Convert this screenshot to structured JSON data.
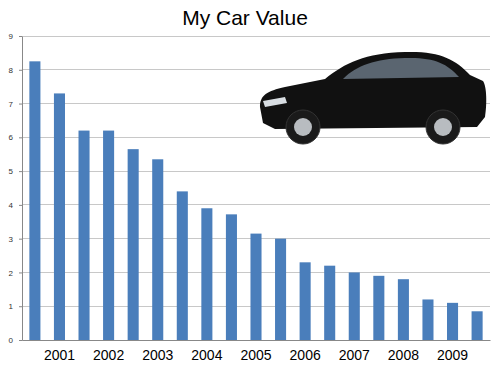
{
  "chart_data": {
    "type": "bar",
    "title": "My Car Value",
    "categories": [
      null,
      "2001",
      null,
      "2002",
      null,
      "2003",
      null,
      "2004",
      null,
      "2005",
      null,
      "2006",
      null,
      "2007",
      null,
      "2008",
      null,
      "2009",
      null
    ],
    "values": [
      8.25,
      7.3,
      6.2,
      6.2,
      5.65,
      5.35,
      4.4,
      3.9,
      3.72,
      3.15,
      3.0,
      2.3,
      2.2,
      2.0,
      1.9,
      1.8,
      1.2,
      1.1,
      0.85
    ],
    "color": "#4a7ebb",
    "ylim": [
      0,
      9
    ],
    "yticks": [
      0,
      1,
      2,
      3,
      4,
      5,
      6,
      7,
      8,
      9
    ],
    "grid": true
  }
}
